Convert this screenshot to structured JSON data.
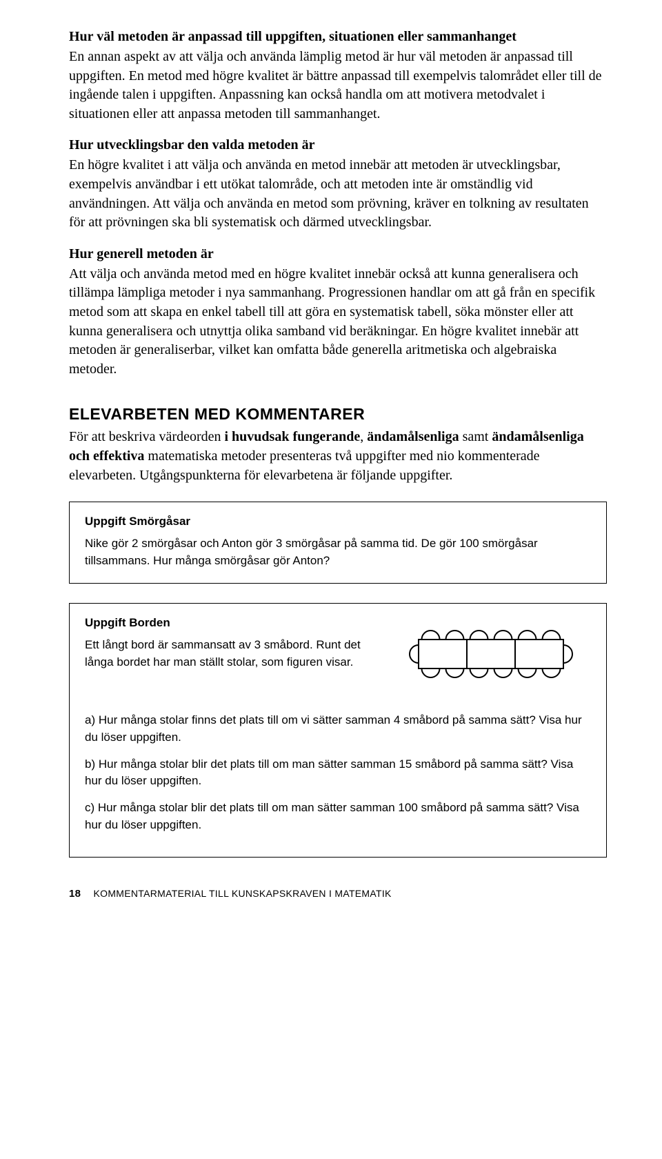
{
  "section1": {
    "heading": "Hur väl metoden är anpassad till uppgiften, situationen eller sammanhanget",
    "body": "En annan aspekt av att välja och använda lämplig metod är hur väl metoden är anpassad till uppgiften. En metod med högre kvalitet är bättre anpassad till exempelvis talområdet eller till de ingående talen i uppgiften. Anpassning kan också handla om att motivera metodvalet i situationen eller att anpassa metoden till sammanhanget."
  },
  "section2": {
    "heading": "Hur utvecklingsbar den valda metoden är",
    "body": "En högre kvalitet i att välja och använda en metod innebär att metoden är utvecklingsbar, exempelvis användbar i ett utökat talområde, och att metoden inte är omständlig vid användningen. Att välja och använda en metod som prövning, kräver en tolkning av resultaten för att prövningen ska bli systematisk och därmed utvecklingsbar."
  },
  "section3": {
    "heading": "Hur generell metoden är",
    "body": "Att välja och använda metod med en högre kvalitet innebär också att kunna generalisera och tillämpa lämpliga metoder i nya sammanhang. Progressionen handlar om att gå från en specifik metod som att skapa en enkel tabell till att göra en systematisk tabell, söka mönster eller att kunna generalisera och utnyttja olika samband vid beräkningar. En högre kvalitet innebär att metoden är generaliserbar, vilket kan omfatta både generella aritmetiska och algebraiska metoder."
  },
  "main_heading": "ELEVARBETEN MED KOMMENTARER",
  "intro": {
    "pre": "För att beskriva värdeorden ",
    "b1": "i huvudsak fungerande",
    "mid1": ", ",
    "b2": "ändamålsenliga",
    "mid2": " samt ",
    "b3": "ändamålsenliga och effektiva",
    "post": " matematiska metoder presenteras två uppgifter med nio kommenterade elevarbeten. Utgångspunkterna för elevarbetena är följande uppgifter."
  },
  "task1": {
    "title": "Uppgift Smörgåsar",
    "body": "Nike gör 2 smörgåsar och Anton gör 3 smörgåsar på samma tid. De gör 100 smörgåsar tillsammans. Hur många smörgåsar gör Anton?"
  },
  "task2": {
    "title": "Uppgift Borden",
    "body": "Ett långt bord är sammansatt av 3 småbord. Runt det långa bordet har man ställt stolar, som figuren visar.",
    "qa": "a) Hur många stolar finns det plats till om vi sätter samman 4 småbord på samma sätt? Visa hur du löser uppgiften.",
    "qb": "b) Hur många stolar blir det plats till om man sätter samman 15 småbord på samma sätt? Visa hur du löser uppgiften.",
    "qc": "c) Hur många stolar blir det plats till om man sätter samman 100 småbord på samma sätt? Visa hur du löser uppgiften.",
    "figure": {
      "small_tables": 3,
      "chairs_top_per_table": 2,
      "chairs_bottom_per_table": 2,
      "chairs_ends": 2,
      "stroke": "#000000",
      "stroke_width": 2,
      "fill": "#ffffff"
    }
  },
  "footer": {
    "page": "18",
    "text": "KOMMENTARMATERIAL TILL KUNSKAPSKRAVEN I MATEMATIK"
  }
}
